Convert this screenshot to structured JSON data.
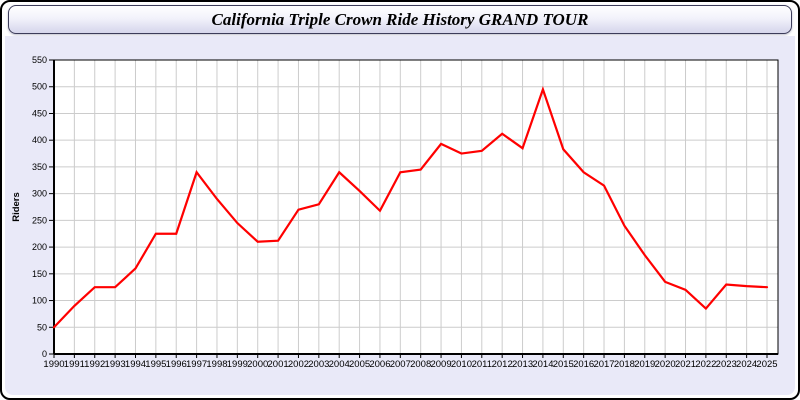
{
  "title_bar": {
    "title": "California Triple Crown Ride History GRAND TOUR"
  },
  "colors": {
    "line": "#ff0000",
    "panel_bg": "#e9e9f8",
    "plot_bg": "#ffffff",
    "grid": "#cccccc",
    "axis": "#000000",
    "tick_label": "#000000"
  },
  "chart_data": {
    "type": "line",
    "title": "California Triple Crown Ride History GRAND TOUR",
    "xlabel": "",
    "ylabel": "Riders",
    "ylim": [
      0,
      550
    ],
    "ytick_step": 50,
    "grid": true,
    "legend_position": "none",
    "x": [
      1990,
      1991,
      1992,
      1993,
      1994,
      1995,
      1996,
      1997,
      1998,
      1999,
      2000,
      2001,
      2002,
      2003,
      2004,
      2005,
      2006,
      2007,
      2008,
      2009,
      2010,
      2011,
      2012,
      2013,
      2014,
      2015,
      2016,
      2017,
      2018,
      2019,
      2020,
      2021,
      2022,
      2023,
      2024,
      2025
    ],
    "series": [
      {
        "name": "Riders",
        "values": [
          50,
          90,
          125,
          125,
          160,
          225,
          225,
          340,
          290,
          245,
          210,
          212,
          270,
          280,
          340,
          305,
          268,
          340,
          345,
          393,
          375,
          380,
          412,
          385,
          495,
          383,
          340,
          315,
          240,
          185,
          135,
          120,
          85,
          130,
          127,
          125
        ]
      }
    ]
  }
}
